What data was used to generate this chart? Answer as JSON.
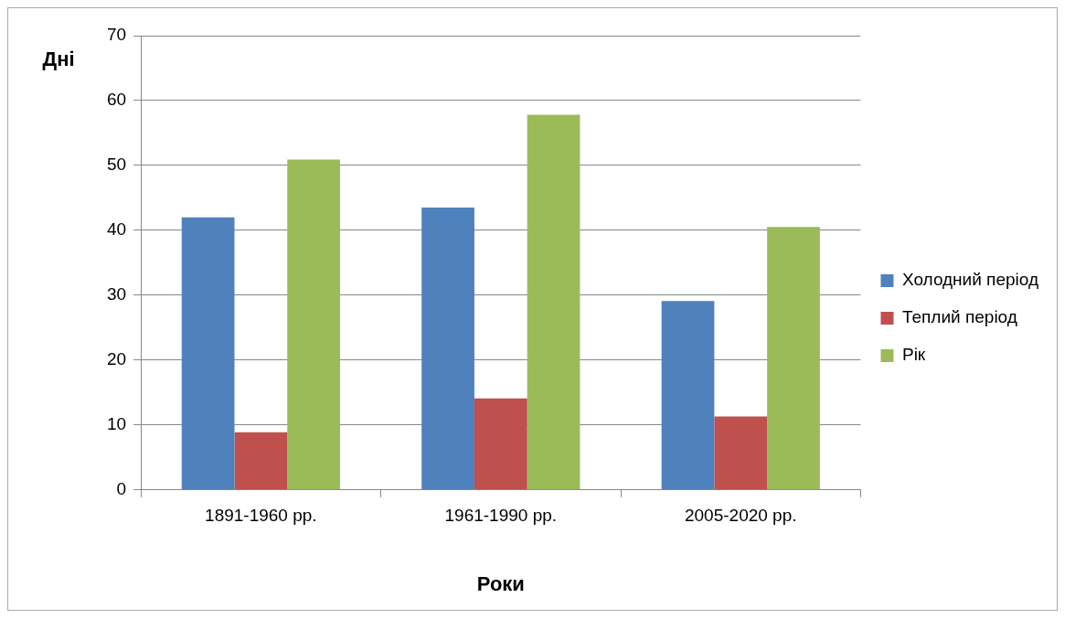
{
  "chart_data": {
    "type": "bar",
    "xlabel": "Роки",
    "ylabel": "Дні",
    "categories": [
      "1891-1960 рр.",
      "1961-1990 рр.",
      "2005-2020 рр."
    ],
    "series": [
      {
        "name": "Холодний період",
        "color": "#4f81bd",
        "values": [
          42,
          43.5,
          29.1
        ]
      },
      {
        "name": "Теплий період",
        "color": "#c0504d",
        "values": [
          8.9,
          14.1,
          11.3
        ]
      },
      {
        "name": "Рік",
        "color": "#9bbb59",
        "values": [
          50.9,
          57.8,
          40.5
        ]
      }
    ],
    "ylim": [
      0,
      70
    ],
    "yticks": [
      0,
      10,
      20,
      30,
      40,
      50,
      60,
      70
    ],
    "grid": "y",
    "legend": "right"
  }
}
